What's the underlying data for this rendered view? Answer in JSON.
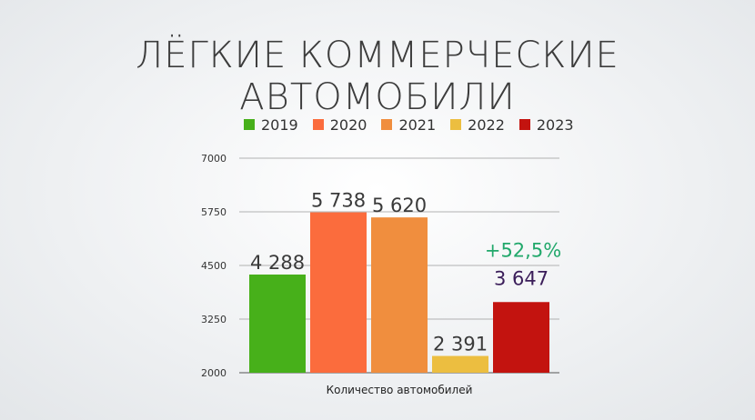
{
  "title": "ЛЁГКИЕ КОММЕРЧЕСКИЕ АВТОМОБИЛИ",
  "chart_data": {
    "type": "bar",
    "categories": [
      ""
    ],
    "series": [
      {
        "name": "2019",
        "values": [
          4288
        ],
        "label": "4 288",
        "color": "#47b01a"
      },
      {
        "name": "2020",
        "values": [
          5738
        ],
        "label": "5 738",
        "color": "#fb6c3d"
      },
      {
        "name": "2021",
        "values": [
          5620
        ],
        "label": "5 620",
        "color": "#f08e3e"
      },
      {
        "name": "2022",
        "values": [
          2391
        ],
        "label": "2 391",
        "color": "#ecbe40"
      },
      {
        "name": "2023",
        "values": [
          3647
        ],
        "label": "3 647",
        "color": "#c3130f"
      }
    ],
    "xlabel": "Количество автомобилей",
    "ylabel": "",
    "ylim": [
      2000,
      7000
    ],
    "yticks": [
      "2000",
      "3250",
      "4500",
      "5750",
      "7000"
    ],
    "grid": true,
    "legend_position": "top",
    "annotation": {
      "text": "+52,5%",
      "color": "#21a86b",
      "series": "2023"
    },
    "data_label_color_2023": "#3b1e5a"
  }
}
